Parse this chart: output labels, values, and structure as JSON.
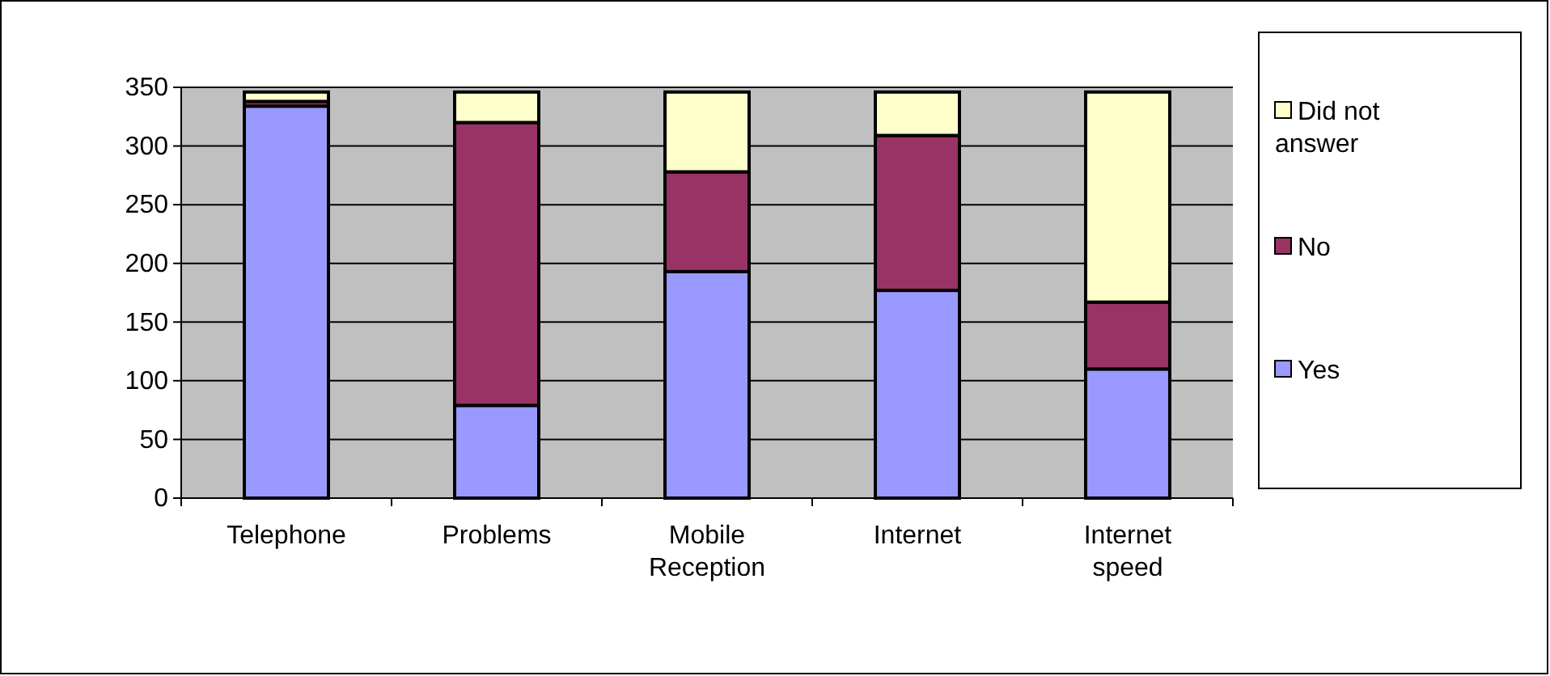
{
  "chart_data": {
    "type": "bar",
    "stacked": true,
    "categories": [
      "Telephone",
      "Problems",
      "Mobile Reception",
      "Internet",
      "Internet speed"
    ],
    "series": [
      {
        "name": "Yes",
        "color": "#9999ff",
        "values": [
          334,
          79,
          193,
          177,
          110
        ]
      },
      {
        "name": "No",
        "color": "#993366",
        "values": [
          4,
          241,
          85,
          132,
          57
        ]
      },
      {
        "name": "Did not answer",
        "color": "#ffffcc",
        "values": [
          8,
          26,
          68,
          37,
          179
        ]
      }
    ],
    "ylim": [
      0,
      350
    ],
    "yticks": [
      0,
      50,
      100,
      150,
      200,
      250,
      300,
      350
    ],
    "grid": "y",
    "legend": "right"
  }
}
